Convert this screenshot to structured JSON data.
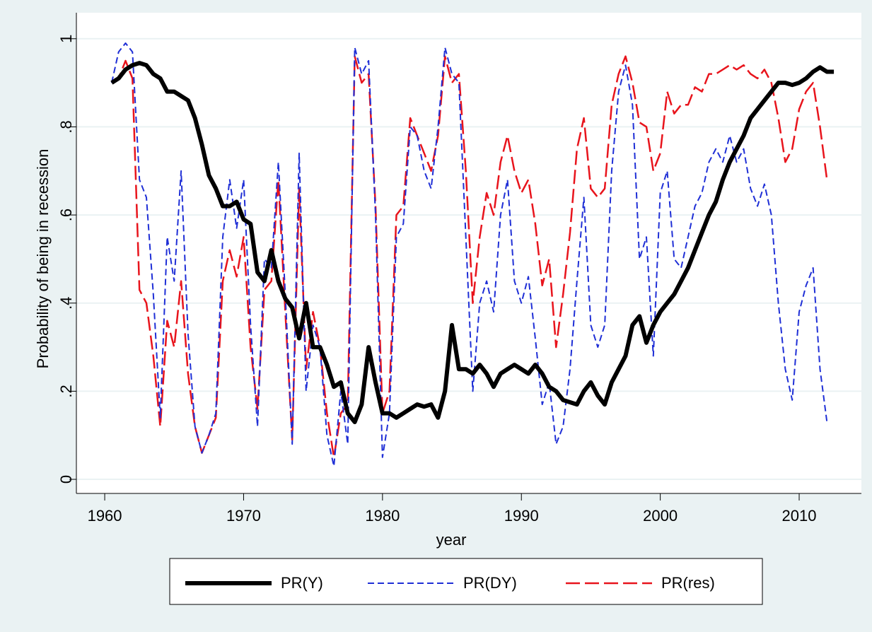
{
  "chart_data": {
    "type": "line",
    "y_label": "Probability of being in recession",
    "x_label": "year",
    "xlim": [
      1957.96,
      2014.48
    ],
    "ylim": [
      -0.032,
      1.059
    ],
    "xticks": [
      1960,
      1970,
      1980,
      1990,
      2000,
      2010
    ],
    "yticks": [
      0,
      {
        "value": 0.2,
        "label": ".2"
      },
      {
        "value": 0.4,
        "label": ".4"
      },
      {
        "value": 0.6,
        "label": ".6"
      },
      {
        "value": 0.8,
        "label": ".8"
      },
      1
    ],
    "grid": true,
    "legend": "bottom",
    "x": [
      1960.5,
      1961,
      1961.5,
      1962,
      1962.5,
      1963,
      1963.5,
      1964,
      1964.5,
      1965,
      1965.5,
      1966,
      1966.5,
      1967,
      1967.5,
      1968,
      1968.5,
      1969,
      1969.5,
      1970,
      1970.5,
      1971,
      1971.5,
      1972,
      1972.5,
      1973,
      1973.5,
      1974,
      1974.5,
      1975,
      1975.5,
      1976,
      1976.5,
      1977,
      1977.5,
      1978,
      1978.5,
      1979,
      1979.5,
      1980,
      1980.5,
      1981,
      1981.5,
      1982,
      1982.5,
      1983,
      1983.5,
      1984,
      1984.5,
      1985,
      1985.5,
      1986,
      1986.5,
      1987,
      1987.5,
      1988,
      1988.5,
      1989,
      1989.5,
      1990,
      1990.5,
      1991,
      1991.5,
      1992,
      1992.5,
      1993,
      1993.5,
      1994,
      1994.5,
      1995,
      1995.5,
      1996,
      1996.5,
      1997,
      1997.5,
      1998,
      1998.5,
      1999,
      1999.5,
      2000,
      2000.5,
      2001,
      2001.5,
      2002,
      2002.5,
      2003,
      2003.5,
      2004,
      2004.5,
      2005,
      2005.5,
      2006,
      2006.5,
      2007,
      2007.5,
      2008,
      2008.5,
      2009,
      2009.5,
      2010,
      2010.5,
      2011,
      2011.5,
      2012,
      2012.5
    ],
    "series": [
      {
        "name": "PR(Y)",
        "color": "#000000",
        "style": "solid",
        "values": [
          0.9,
          0.91,
          0.93,
          0.94,
          0.945,
          0.94,
          0.92,
          0.91,
          0.88,
          0.88,
          0.87,
          0.86,
          0.82,
          0.76,
          0.69,
          0.66,
          0.62,
          0.62,
          0.63,
          0.59,
          0.58,
          0.47,
          0.45,
          0.52,
          0.45,
          0.41,
          0.39,
          0.32,
          0.4,
          0.3,
          0.3,
          0.26,
          0.21,
          0.22,
          0.15,
          0.13,
          0.17,
          0.3,
          0.22,
          0.15,
          0.15,
          0.14,
          0.15,
          0.16,
          0.17,
          0.165,
          0.17,
          0.14,
          0.2,
          0.35,
          0.25,
          0.25,
          0.24,
          0.26,
          0.24,
          0.21,
          0.24,
          0.25,
          0.26,
          0.25,
          0.24,
          0.26,
          0.24,
          0.21,
          0.2,
          0.18,
          0.175,
          0.17,
          0.2,
          0.22,
          0.19,
          0.17,
          0.22,
          0.25,
          0.28,
          0.35,
          0.37,
          0.31,
          0.35,
          0.38,
          0.4,
          0.42,
          0.45,
          0.48,
          0.52,
          0.56,
          0.6,
          0.63,
          0.68,
          0.72,
          0.75,
          0.78,
          0.82,
          0.84,
          0.86,
          0.88,
          0.9,
          0.9,
          0.895,
          0.9,
          0.91,
          0.925,
          0.935,
          0.925,
          0.925
        ]
      },
      {
        "name": "PR(DY)",
        "color": "#1f2fd6",
        "style": "dash",
        "values": [
          0.9,
          0.97,
          0.99,
          0.97,
          0.68,
          0.64,
          0.42,
          0.14,
          0.55,
          0.45,
          0.7,
          0.33,
          0.12,
          0.06,
          0.1,
          0.15,
          0.55,
          0.68,
          0.57,
          0.68,
          0.35,
          0.12,
          0.5,
          0.48,
          0.72,
          0.42,
          0.08,
          0.74,
          0.2,
          0.35,
          0.3,
          0.1,
          0.03,
          0.2,
          0.08,
          0.98,
          0.92,
          0.95,
          0.6,
          0.05,
          0.15,
          0.55,
          0.58,
          0.8,
          0.78,
          0.7,
          0.66,
          0.8,
          0.98,
          0.92,
          0.9,
          0.55,
          0.2,
          0.4,
          0.45,
          0.38,
          0.6,
          0.68,
          0.45,
          0.4,
          0.46,
          0.32,
          0.17,
          0.22,
          0.08,
          0.12,
          0.25,
          0.45,
          0.64,
          0.35,
          0.3,
          0.35,
          0.7,
          0.88,
          0.94,
          0.85,
          0.5,
          0.55,
          0.28,
          0.65,
          0.7,
          0.5,
          0.48,
          0.55,
          0.62,
          0.65,
          0.72,
          0.75,
          0.72,
          0.78,
          0.72,
          0.75,
          0.66,
          0.62,
          0.67,
          0.6,
          0.4,
          0.25,
          0.18,
          0.38,
          0.44,
          0.48,
          0.25,
          0.13,
          null
        ]
      },
      {
        "name": "PR(res)",
        "color": "#e8141c",
        "style": "longdash",
        "values": [
          0.9,
          0.91,
          0.95,
          0.91,
          0.43,
          0.4,
          0.28,
          0.12,
          0.36,
          0.3,
          0.45,
          0.24,
          0.12,
          0.06,
          0.1,
          0.14,
          0.45,
          0.52,
          0.46,
          0.55,
          0.3,
          0.16,
          0.43,
          0.45,
          0.68,
          0.38,
          0.09,
          0.66,
          0.25,
          0.38,
          0.3,
          0.15,
          0.05,
          0.15,
          0.17,
          0.96,
          0.9,
          0.92,
          0.62,
          0.15,
          0.2,
          0.6,
          0.62,
          0.82,
          0.78,
          0.74,
          0.7,
          0.78,
          0.96,
          0.9,
          0.92,
          0.7,
          0.4,
          0.55,
          0.65,
          0.6,
          0.72,
          0.78,
          0.7,
          0.65,
          0.68,
          0.58,
          0.44,
          0.5,
          0.3,
          0.42,
          0.56,
          0.75,
          0.82,
          0.66,
          0.64,
          0.66,
          0.85,
          0.92,
          0.96,
          0.9,
          0.81,
          0.8,
          0.7,
          0.74,
          0.88,
          0.83,
          0.85,
          0.85,
          0.89,
          0.88,
          0.92,
          0.92,
          0.93,
          0.94,
          0.93,
          0.94,
          0.92,
          0.91,
          0.93,
          0.9,
          0.82,
          0.72,
          0.75,
          0.84,
          0.88,
          0.9,
          0.8,
          0.68,
          null
        ]
      }
    ]
  }
}
